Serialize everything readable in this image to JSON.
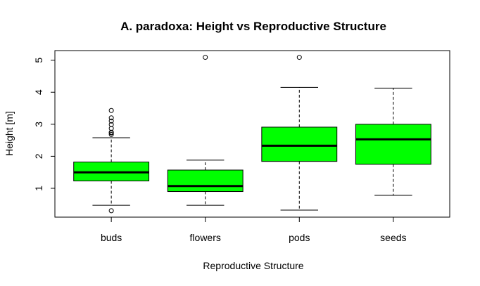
{
  "chart_data": {
    "type": "box",
    "title": "A. paradoxa: Height vs Reproductive Structure",
    "xlabel": "Reproductive Structure",
    "ylabel": "Height [m]",
    "ylim": [
      0.1,
      5.3
    ],
    "yticks": [
      1,
      2,
      3,
      4,
      5
    ],
    "grid": false,
    "box_color": "#00ff00",
    "categories": [
      "buds",
      "flowers",
      "pods",
      "seeds"
    ],
    "series": [
      {
        "category": "buds",
        "whisker_low": 0.47,
        "q1": 1.23,
        "median": 1.5,
        "q3": 1.82,
        "whisker_high": 2.58,
        "outliers": [
          0.3,
          2.68,
          2.73,
          2.75,
          2.87,
          2.99,
          3.1,
          3.2,
          3.43
        ]
      },
      {
        "category": "flowers",
        "whisker_low": 0.47,
        "q1": 0.9,
        "median": 1.07,
        "q3": 1.57,
        "whisker_high": 1.88,
        "outliers": [
          5.09
        ]
      },
      {
        "category": "pods",
        "whisker_low": 0.32,
        "q1": 1.84,
        "median": 2.33,
        "q3": 2.91,
        "whisker_high": 4.15,
        "outliers": [
          5.09
        ]
      },
      {
        "category": "seeds",
        "whisker_low": 0.78,
        "q1": 1.75,
        "median": 2.53,
        "q3": 3.0,
        "whisker_high": 4.13,
        "outliers": []
      }
    ]
  }
}
